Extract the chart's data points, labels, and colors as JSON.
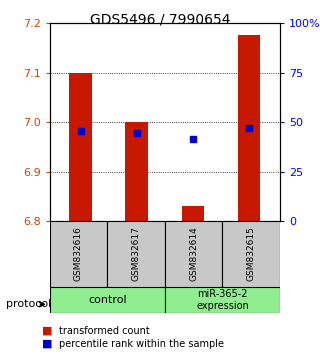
{
  "title": "GDS5496 / 7990654",
  "samples": [
    "GSM832616",
    "GSM832617",
    "GSM832614",
    "GSM832615"
  ],
  "bar_bottom": 6.8,
  "bar_tops": [
    7.1,
    7.0,
    6.83,
    7.175
  ],
  "percentile_values": [
    6.982,
    6.978,
    6.965,
    6.988
  ],
  "ylim": [
    6.8,
    7.2
  ],
  "yticks_left": [
    6.8,
    6.9,
    7.0,
    7.1,
    7.2
  ],
  "yticks_right": [
    0,
    25,
    50,
    75,
    100
  ],
  "bar_color": "#c81800",
  "dot_color": "#0000cc",
  "bar_width": 0.4,
  "legend_red_label": "transformed count",
  "legend_blue_label": "percentile rank within the sample",
  "background_color": "#ffffff",
  "group_box_color": "#90ee90",
  "sample_box_color": "#c8c8c8"
}
